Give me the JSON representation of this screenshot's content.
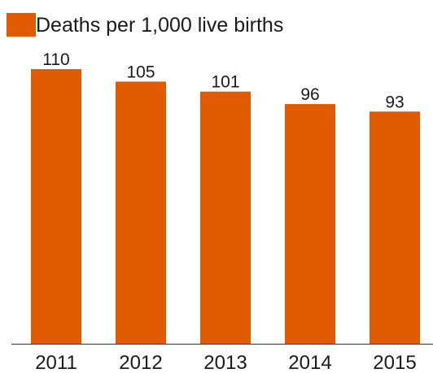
{
  "chart_data": {
    "type": "bar",
    "categories": [
      "2011",
      "2012",
      "2013",
      "2014",
      "2015"
    ],
    "series": [
      {
        "name": "Deaths per 1,000 live births",
        "values": [
          110,
          105,
          101,
          96,
          93
        ],
        "color": "#e05a00"
      }
    ],
    "ylim": [
      0,
      120
    ],
    "grid": false,
    "legend_position": "top-left",
    "data_labels": [
      "110",
      "105",
      "101",
      "96",
      "93"
    ]
  }
}
